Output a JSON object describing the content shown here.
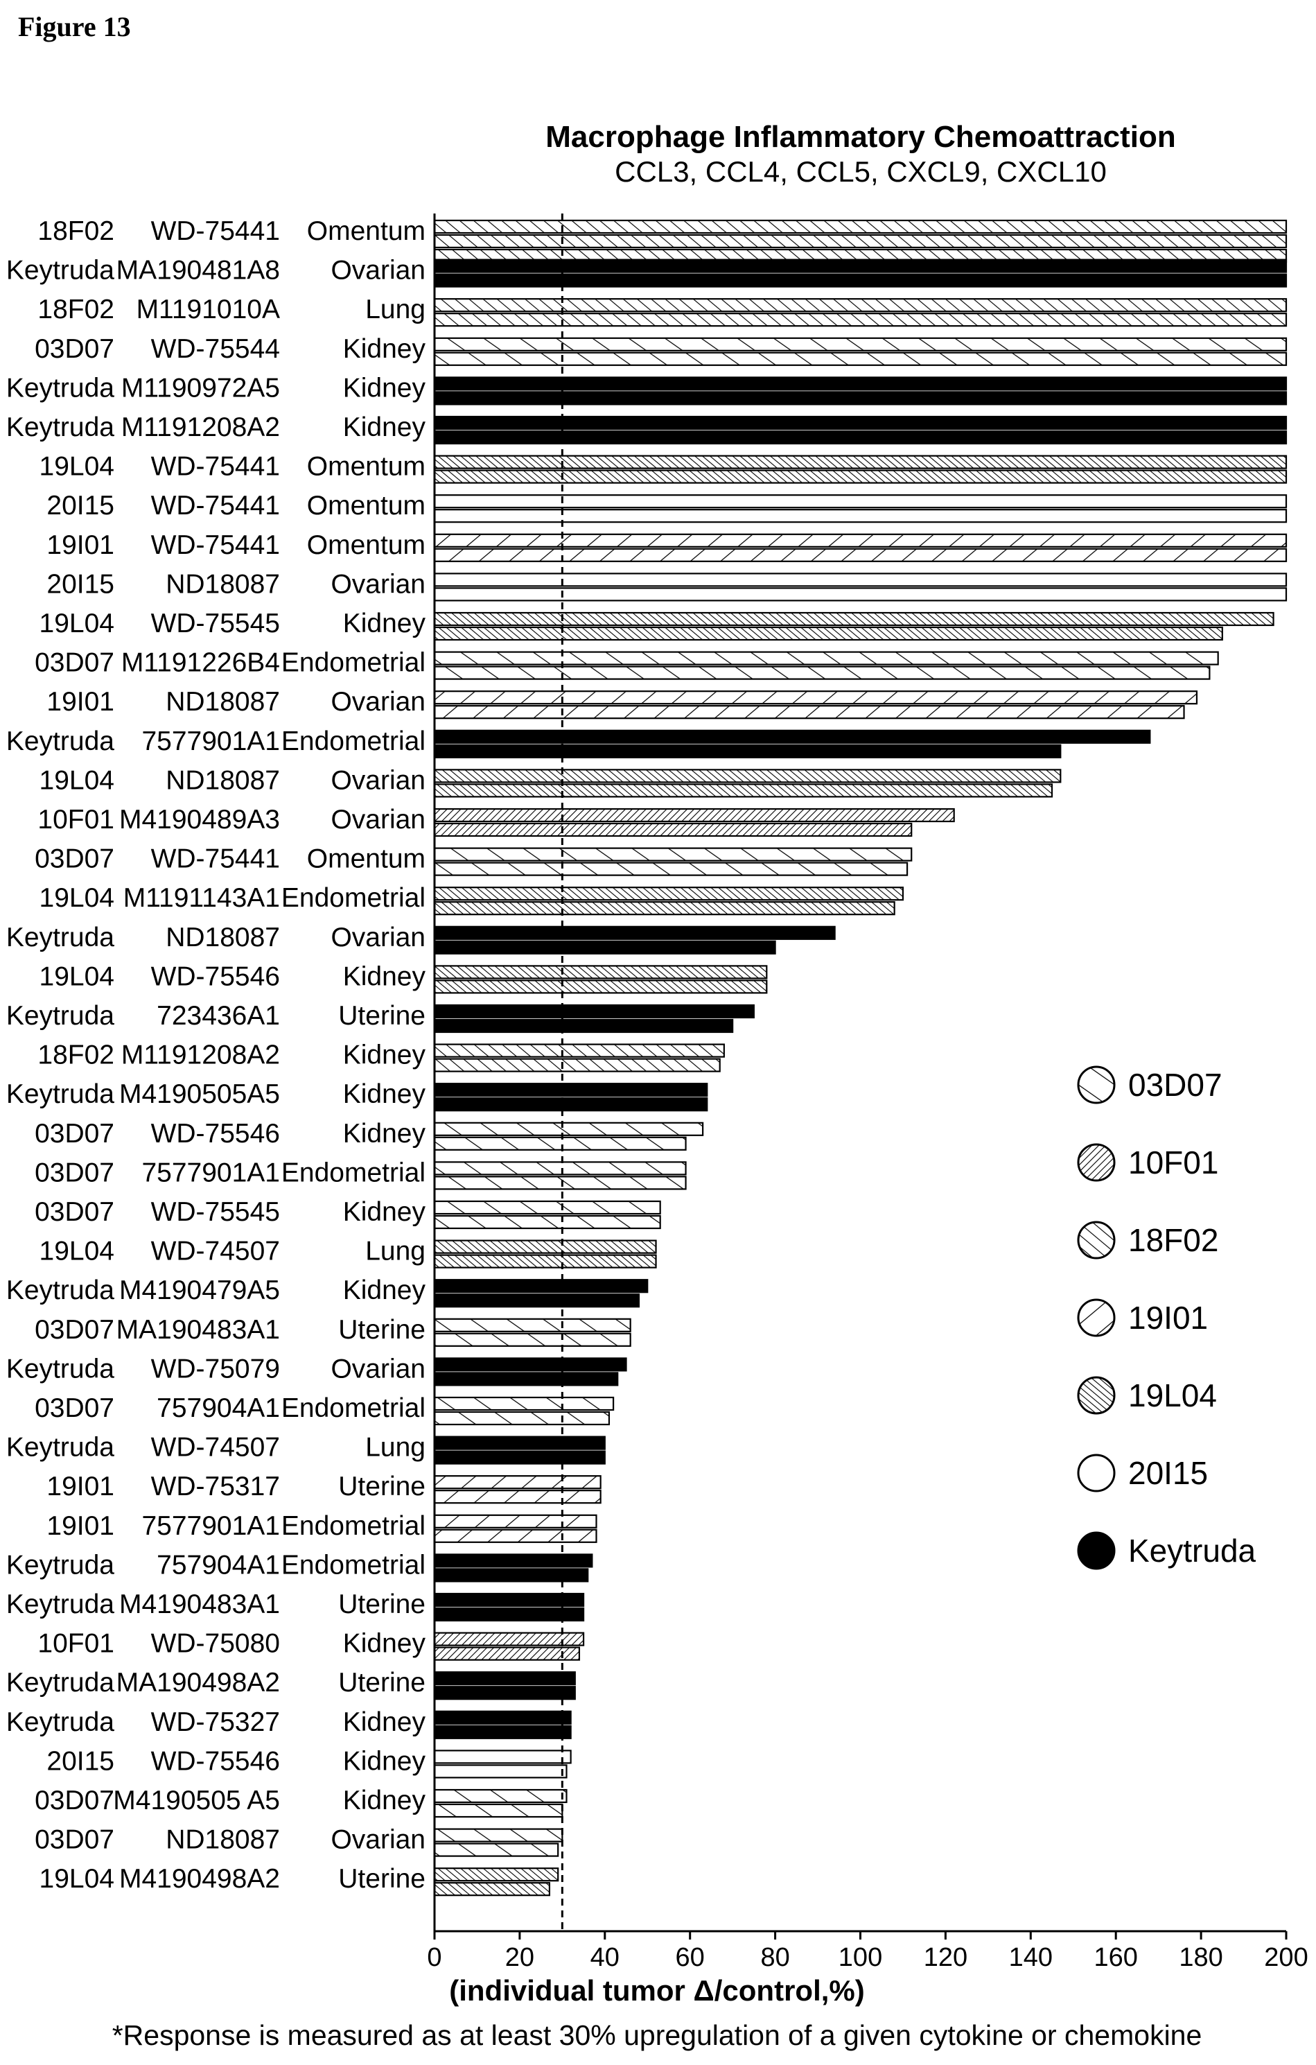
{
  "figure_label": "Figure 13",
  "chart_data": {
    "type": "bar",
    "orientation": "horizontal",
    "title": "Macrophage Inflammatory Chemoattraction",
    "subtitle": "CCL3, CCL4, CCL5, CXCL9, CXCL10",
    "xlabel": "(individual tumor Δ/control,%)",
    "footnote": "*Response is measured as at least 30% upregulation of a given cytokine or chemokine",
    "xlim": [
      0,
      200
    ],
    "xticks": [
      "0",
      "20",
      "40",
      "60",
      "80",
      "100",
      "120",
      "140",
      "160",
      "180",
      "200"
    ],
    "threshold": 30,
    "legend_position": "right",
    "legend": [
      {
        "name": "03D07",
        "pattern": "sparse-diagonal"
      },
      {
        "name": "10F01",
        "pattern": "dense-back-diagonal"
      },
      {
        "name": "18F02",
        "pattern": "diagonal"
      },
      {
        "name": "19I01",
        "pattern": "back-diagonal"
      },
      {
        "name": "19L04",
        "pattern": "dense-diagonal"
      },
      {
        "name": "20I15",
        "pattern": "open"
      },
      {
        "name": "Keytruda",
        "pattern": "solid"
      }
    ],
    "rows": [
      {
        "treatment": "18F02",
        "sample": "WD-75441",
        "tissue": "Omentum",
        "values": [
          200,
          200,
          200
        ]
      },
      {
        "treatment": "Keytruda",
        "sample": "MA190481A8",
        "tissue": "Ovarian",
        "values": [
          200,
          200
        ]
      },
      {
        "treatment": "18F02",
        "sample": "M1191010A",
        "tissue": "Lung",
        "values": [
          200,
          200
        ]
      },
      {
        "treatment": "03D07",
        "sample": "WD-75544",
        "tissue": "Kidney",
        "values": [
          200,
          200
        ]
      },
      {
        "treatment": "Keytruda",
        "sample": "M1190972A5",
        "tissue": "Kidney",
        "values": [
          200,
          200
        ]
      },
      {
        "treatment": "Keytruda",
        "sample": "M1191208A2",
        "tissue": "Kidney",
        "values": [
          200,
          200
        ]
      },
      {
        "treatment": "19L04",
        "sample": "WD-75441",
        "tissue": "Omentum",
        "values": [
          200,
          200
        ]
      },
      {
        "treatment": "20I15",
        "sample": "WD-75441",
        "tissue": "Omentum",
        "values": [
          200,
          200
        ]
      },
      {
        "treatment": "19I01",
        "sample": "WD-75441",
        "tissue": "Omentum",
        "values": [
          200,
          200
        ]
      },
      {
        "treatment": "20I15",
        "sample": "ND18087",
        "tissue": "Ovarian",
        "values": [
          200,
          200
        ]
      },
      {
        "treatment": "19L04",
        "sample": "WD-75545",
        "tissue": "Kidney",
        "values": [
          197,
          185
        ]
      },
      {
        "treatment": "03D07",
        "sample": "M1191226B4",
        "tissue": "Endometrial",
        "values": [
          184,
          182
        ]
      },
      {
        "treatment": "19I01",
        "sample": "ND18087",
        "tissue": "Ovarian",
        "values": [
          179,
          176
        ]
      },
      {
        "treatment": "Keytruda",
        "sample": "7577901A1",
        "tissue": "Endometrial",
        "values": [
          168,
          147
        ]
      },
      {
        "treatment": "19L04",
        "sample": "ND18087",
        "tissue": "Ovarian",
        "values": [
          147,
          145
        ]
      },
      {
        "treatment": "10F01",
        "sample": "M4190489A3",
        "tissue": "Ovarian",
        "values": [
          122,
          112
        ]
      },
      {
        "treatment": "03D07",
        "sample": "WD-75441",
        "tissue": "Omentum",
        "values": [
          112,
          111
        ]
      },
      {
        "treatment": "19L04",
        "sample": "M1191143A1",
        "tissue": "Endometrial",
        "values": [
          110,
          108
        ]
      },
      {
        "treatment": "Keytruda",
        "sample": "ND18087",
        "tissue": "Ovarian",
        "values": [
          94,
          80
        ]
      },
      {
        "treatment": "19L04",
        "sample": "WD-75546",
        "tissue": "Kidney",
        "values": [
          78,
          78
        ]
      },
      {
        "treatment": "Keytruda",
        "sample": "723436A1",
        "tissue": "Uterine",
        "values": [
          75,
          70
        ]
      },
      {
        "treatment": "18F02",
        "sample": "M1191208A2",
        "tissue": "Kidney",
        "values": [
          68,
          67
        ]
      },
      {
        "treatment": "Keytruda",
        "sample": "M4190505A5",
        "tissue": "Kidney",
        "values": [
          64,
          64
        ]
      },
      {
        "treatment": "03D07",
        "sample": "WD-75546",
        "tissue": "Kidney",
        "values": [
          63,
          59
        ]
      },
      {
        "treatment": "03D07",
        "sample": "7577901A1",
        "tissue": "Endometrial",
        "values": [
          59,
          59
        ]
      },
      {
        "treatment": "03D07",
        "sample": "WD-75545",
        "tissue": "Kidney",
        "values": [
          53,
          53
        ]
      },
      {
        "treatment": "19L04",
        "sample": "WD-74507",
        "tissue": "Lung",
        "values": [
          52,
          52
        ]
      },
      {
        "treatment": "Keytruda",
        "sample": "M4190479A5",
        "tissue": "Kidney",
        "values": [
          50,
          48
        ]
      },
      {
        "treatment": "03D07",
        "sample": "MA190483A1",
        "tissue": "Uterine",
        "values": [
          46,
          46
        ]
      },
      {
        "treatment": "Keytruda",
        "sample": "WD-75079",
        "tissue": "Ovarian",
        "values": [
          45,
          43
        ]
      },
      {
        "treatment": "03D07",
        "sample": "757904A1",
        "tissue": "Endometrial",
        "values": [
          42,
          41
        ]
      },
      {
        "treatment": "Keytruda",
        "sample": "WD-74507",
        "tissue": "Lung",
        "values": [
          40,
          40
        ]
      },
      {
        "treatment": "19I01",
        "sample": "WD-75317",
        "tissue": "Uterine",
        "values": [
          39,
          39
        ]
      },
      {
        "treatment": "19I01",
        "sample": "7577901A1",
        "tissue": "Endometrial",
        "values": [
          38,
          38
        ]
      },
      {
        "treatment": "Keytruda",
        "sample": "757904A1",
        "tissue": "Endometrial",
        "values": [
          37,
          36
        ]
      },
      {
        "treatment": "Keytruda",
        "sample": "M4190483A1",
        "tissue": "Uterine",
        "values": [
          35,
          35
        ]
      },
      {
        "treatment": "10F01",
        "sample": "WD-75080",
        "tissue": "Kidney",
        "values": [
          35,
          34
        ]
      },
      {
        "treatment": "Keytruda",
        "sample": "MA190498A2",
        "tissue": "Uterine",
        "values": [
          33,
          33
        ]
      },
      {
        "treatment": "Keytruda",
        "sample": "WD-75327",
        "tissue": "Kidney",
        "values": [
          32,
          32
        ]
      },
      {
        "treatment": "20I15",
        "sample": "WD-75546",
        "tissue": "Kidney",
        "values": [
          32,
          31
        ]
      },
      {
        "treatment": "03D07",
        "sample": "M4190505 A5",
        "tissue": "Kidney",
        "values": [
          31,
          30
        ]
      },
      {
        "treatment": "03D07",
        "sample": "ND18087",
        "tissue": "Ovarian",
        "values": [
          30,
          29
        ]
      },
      {
        "treatment": "19L04",
        "sample": "M4190498A2",
        "tissue": "Uterine",
        "values": [
          29,
          27
        ]
      }
    ]
  }
}
